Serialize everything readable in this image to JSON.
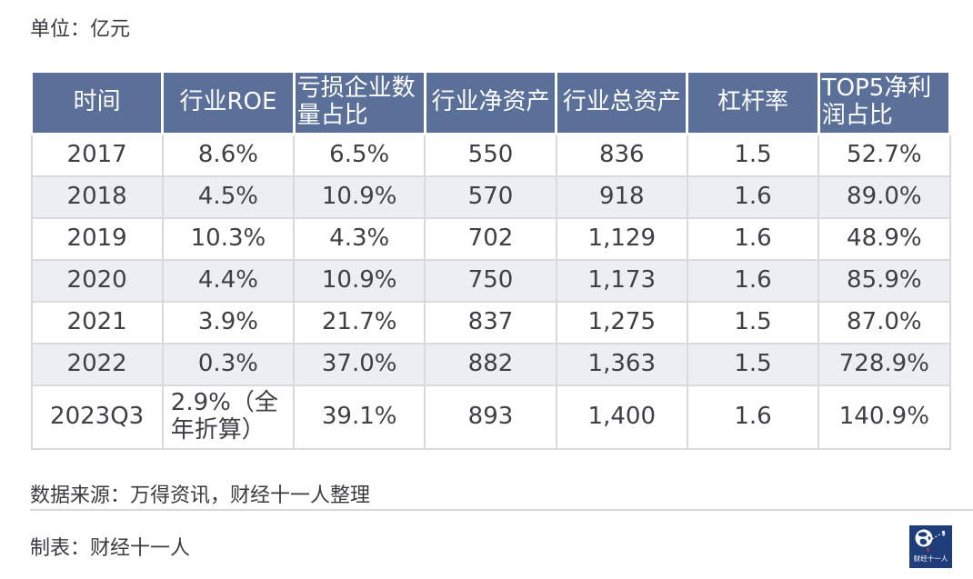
{
  "unit_label": "单位：亿元",
  "table": {
    "columns": [
      "时间",
      "行业ROE",
      "亏损企业数量占比",
      "行业净资产",
      "行业总资产",
      "杠杆率",
      "TOP5净利润占比"
    ],
    "rows": [
      [
        "2017",
        "8.6%",
        "6.5%",
        "550",
        "836",
        "1.5",
        "52.7%"
      ],
      [
        "2018",
        "4.5%",
        "10.9%",
        "570",
        "918",
        "1.6",
        "89.0%"
      ],
      [
        "2019",
        "10.3%",
        "4.3%",
        "702",
        "1,129",
        "1.6",
        "48.9%"
      ],
      [
        "2020",
        "4.4%",
        "10.9%",
        "750",
        "1,173",
        "1.6",
        "85.9%"
      ],
      [
        "2021",
        "3.9%",
        "21.7%",
        "837",
        "1,275",
        "1.5",
        "87.0%"
      ],
      [
        "2022",
        "0.3%",
        "37.0%",
        "882",
        "1,363",
        "1.5",
        "728.9%"
      ],
      [
        "2023Q3",
        "2.9%（全年折算）",
        "39.1%",
        "893",
        "1,400",
        "1.6",
        "140.9%"
      ]
    ]
  },
  "footer": {
    "source_note": "数据来源：万得资讯，财经十一人整理",
    "credit_note": "制表：财经十一人",
    "logo_text": "财经十一人"
  },
  "colors": {
    "header_bg": "#5b7098",
    "header_text": "#ffffff",
    "row_alt_bg": "#edeef3",
    "grid_line": "#d9dade",
    "body_text": "#3e4044",
    "divider": "#d9d9d9",
    "logo_bg": "#1f3d7a",
    "logo_accent": "#c23b33"
  },
  "chart_data": {
    "type": "table",
    "unit": "亿元",
    "columns": [
      "时间",
      "行业ROE",
      "亏损企业数量占比",
      "行业净资产",
      "行业总资产",
      "杠杆率",
      "TOP5净利润占比"
    ],
    "rows": [
      [
        "2017",
        "8.6%",
        "6.5%",
        550,
        836,
        1.5,
        "52.7%"
      ],
      [
        "2018",
        "4.5%",
        "10.9%",
        570,
        918,
        1.6,
        "89.0%"
      ],
      [
        "2019",
        "10.3%",
        "4.3%",
        702,
        1129,
        1.6,
        "48.9%"
      ],
      [
        "2020",
        "4.4%",
        "10.9%",
        750,
        1173,
        1.6,
        "85.9%"
      ],
      [
        "2021",
        "3.9%",
        "21.7%",
        837,
        1275,
        1.5,
        "87.0%"
      ],
      [
        "2022",
        "0.3%",
        "37.0%",
        882,
        1363,
        1.5,
        "728.9%"
      ],
      [
        "2023Q3",
        "2.9%（全年折算）",
        "39.1%",
        893,
        1400,
        1.6,
        "140.9%"
      ]
    ],
    "source": "万得资讯，财经十一人整理"
  }
}
